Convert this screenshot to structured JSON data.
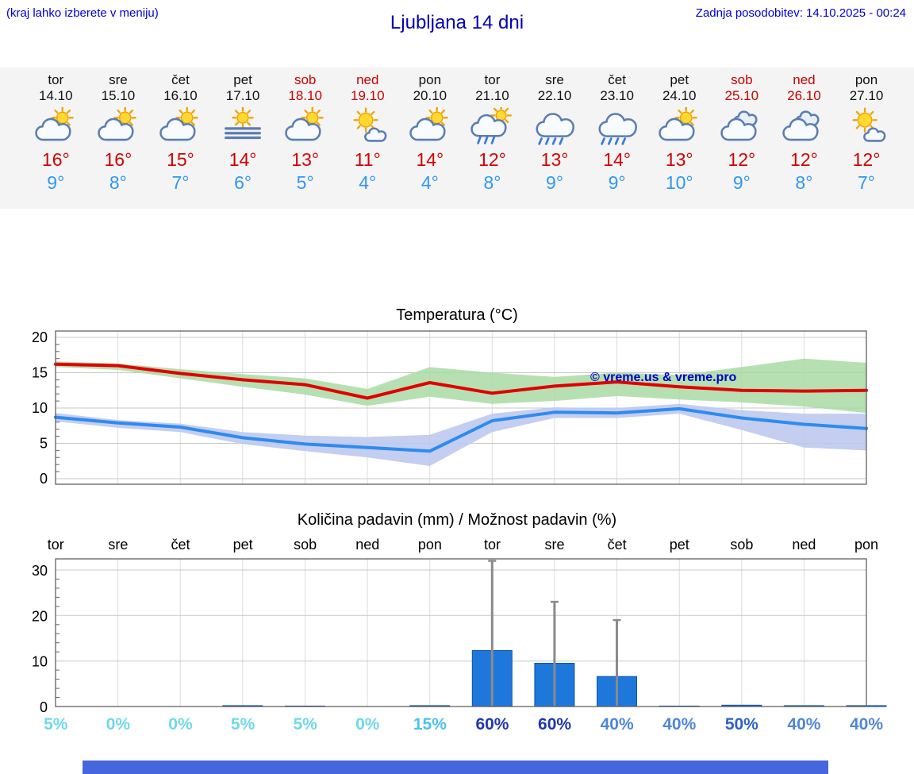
{
  "header": {
    "menu_hint": "(kraj lahko izberete v meniju)",
    "title": "Ljubljana 14 dni",
    "last_update": "Zadnja posodobitev: 14.10.2025 - 00:24"
  },
  "forecast": {
    "days": [
      {
        "name": "tor",
        "date": "14.10",
        "weekend": false,
        "icon": "partly-cloudy",
        "tmax": "16°",
        "tmin": "9°"
      },
      {
        "name": "sre",
        "date": "15.10",
        "weekend": false,
        "icon": "partly-cloudy",
        "tmax": "16°",
        "tmin": "8°"
      },
      {
        "name": "čet",
        "date": "16.10",
        "weekend": false,
        "icon": "partly-cloudy",
        "tmax": "15°",
        "tmin": "7°"
      },
      {
        "name": "pet",
        "date": "17.10",
        "weekend": false,
        "icon": "fog",
        "tmax": "14°",
        "tmin": "6°"
      },
      {
        "name": "sob",
        "date": "18.10",
        "weekend": true,
        "icon": "partly-cloudy",
        "tmax": "13°",
        "tmin": "5°"
      },
      {
        "name": "ned",
        "date": "19.10",
        "weekend": true,
        "icon": "mostly-sunny",
        "tmax": "11°",
        "tmin": "4°"
      },
      {
        "name": "pon",
        "date": "20.10",
        "weekend": false,
        "icon": "partly-cloudy",
        "tmax": "14°",
        "tmin": "4°"
      },
      {
        "name": "tor",
        "date": "21.10",
        "weekend": false,
        "icon": "shower",
        "tmax": "12°",
        "tmin": "8°"
      },
      {
        "name": "sre",
        "date": "22.10",
        "weekend": false,
        "icon": "rain",
        "tmax": "13°",
        "tmin": "9°"
      },
      {
        "name": "čet",
        "date": "23.10",
        "weekend": false,
        "icon": "rain",
        "tmax": "14°",
        "tmin": "9°"
      },
      {
        "name": "pet",
        "date": "24.10",
        "weekend": false,
        "icon": "partly-cloudy",
        "tmax": "13°",
        "tmin": "10°"
      },
      {
        "name": "sob",
        "date": "25.10",
        "weekend": true,
        "icon": "cloudy",
        "tmax": "12°",
        "tmin": "9°"
      },
      {
        "name": "ned",
        "date": "26.10",
        "weekend": true,
        "icon": "cloudy",
        "tmax": "12°",
        "tmin": "8°"
      },
      {
        "name": "pon",
        "date": "27.10",
        "weekend": false,
        "icon": "mostly-sunny",
        "tmax": "12°",
        "tmin": "7°"
      }
    ]
  },
  "chart_data": [
    {
      "type": "line",
      "title": "Temperatura (°C)",
      "watermark": "© vreme.us & vreme.pro",
      "x_labels": [
        "14.10",
        "15.10",
        "16.10",
        "17.10",
        "18.10",
        "19.10",
        "20.10",
        "21.10",
        "22.10",
        "23.10",
        "24.10",
        "25.10",
        "26.10",
        "27.10"
      ],
      "yticks": [
        0,
        5,
        10,
        15,
        20
      ],
      "ylim": [
        -1,
        21
      ],
      "grid": true,
      "series": [
        {
          "name": "max temperature",
          "color": "#e00000",
          "values": [
            16.2,
            16.0,
            14.9,
            14.0,
            13.3,
            11.4,
            13.6,
            12.1,
            13.1,
            13.7,
            13.0,
            12.5,
            12.4,
            12.5
          ]
        },
        {
          "name": "min temperature",
          "color": "#2e8bef",
          "values": [
            8.7,
            7.9,
            7.3,
            5.8,
            4.9,
            4.4,
            3.9,
            8.2,
            9.4,
            9.3,
            9.9,
            8.6,
            7.7,
            7.1
          ]
        }
      ],
      "max_band": {
        "color": "#a9dba4",
        "upper": [
          16.6,
          16.3,
          15.5,
          14.8,
          14.2,
          12.7,
          15.8,
          15.0,
          14.4,
          15.0,
          14.7,
          15.8,
          17.0,
          16.4
        ],
        "lower": [
          15.8,
          15.4,
          14.2,
          13.0,
          11.9,
          10.3,
          11.6,
          10.6,
          11.0,
          11.7,
          11.2,
          10.8,
          10.2,
          9.3
        ]
      },
      "min_band": {
        "color": "#bcc9ee",
        "upper": [
          9.3,
          8.3,
          7.8,
          6.6,
          6.1,
          5.9,
          6.2,
          9.2,
          10.1,
          10.0,
          10.6,
          9.7,
          9.2,
          9.2
        ],
        "lower": [
          8.1,
          7.2,
          6.6,
          4.9,
          3.9,
          3.0,
          1.8,
          6.6,
          8.6,
          8.6,
          9.2,
          6.9,
          4.4,
          4.0
        ]
      }
    },
    {
      "type": "bar",
      "title": "Količina padavin (mm) / Možnost padavin (%)",
      "categories": [
        "tor",
        "sre",
        "čet",
        "pet",
        "sob",
        "ned",
        "pon",
        "tor",
        "sre",
        "čet",
        "pet",
        "sob",
        "ned",
        "pon"
      ],
      "yticks": [
        0,
        10,
        20,
        30
      ],
      "ylim": [
        0,
        32.5
      ],
      "bar_color": "#1e78dc",
      "values": [
        0,
        0,
        0,
        0.2,
        0.1,
        0,
        0.2,
        12.3,
        9.5,
        6.6,
        0.1,
        0.3,
        0.2,
        0.2
      ],
      "whisker_max": [
        0,
        0,
        0,
        0,
        0,
        0,
        0,
        32,
        23,
        19,
        0,
        0,
        0,
        0
      ],
      "probability": [
        "5%",
        "0%",
        "0%",
        "5%",
        "5%",
        "0%",
        "15%",
        "60%",
        "60%",
        "40%",
        "40%",
        "50%",
        "40%",
        "40%"
      ],
      "probability_colors": [
        "#6fd9e7",
        "#6fd9e7",
        "#6fd9e7",
        "#6fd9e7",
        "#6fd9e7",
        "#6fd9e7",
        "#4fc2e6",
        "#2236ae",
        "#2236ae",
        "#4f86d8",
        "#4f86d8",
        "#2e62c8",
        "#4f86d8",
        "#4f86d8"
      ]
    }
  ],
  "footer": {
    "banner_color": "#4566dd"
  }
}
